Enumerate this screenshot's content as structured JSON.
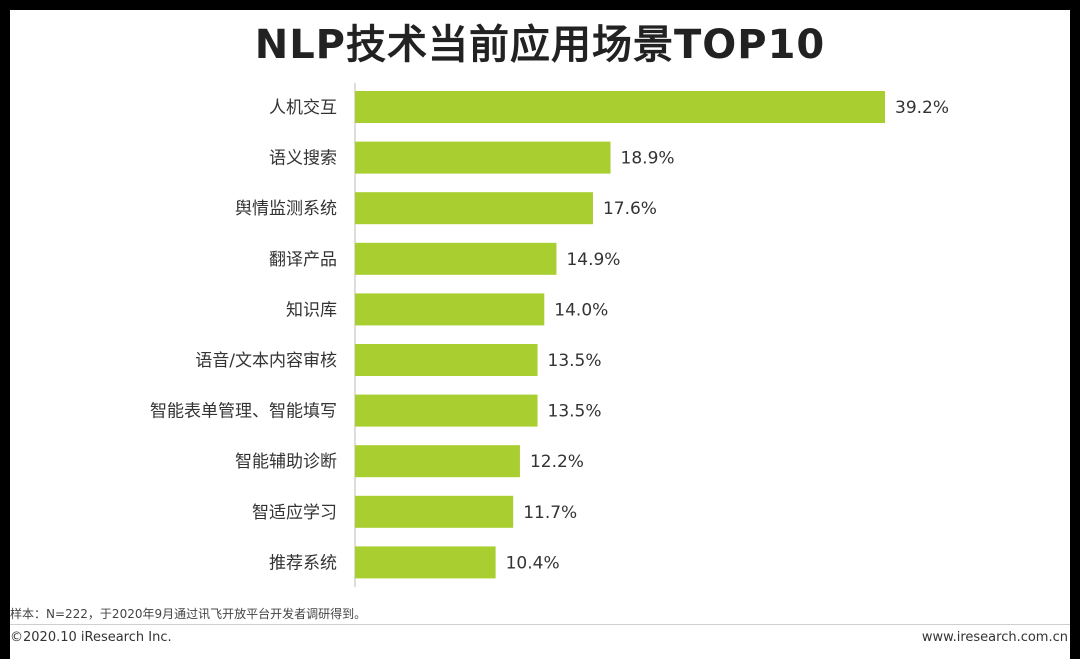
{
  "chart_data": {
    "type": "bar",
    "orientation": "horizontal",
    "title": "NLP技术当前应用场景TOP10",
    "categories": [
      "人机交互",
      "语义搜索",
      "舆情监测系统",
      "翻译产品",
      "知识库",
      "语音/文本内容审核",
      "智能表单管理、智能填写",
      "智能辅助诊断",
      "智适应学习",
      "推荐系统"
    ],
    "values": [
      39.2,
      18.9,
      17.6,
      14.9,
      14.0,
      13.5,
      13.5,
      12.2,
      11.7,
      10.4
    ],
    "value_labels": [
      "39.2%",
      "18.9%",
      "17.6%",
      "14.9%",
      "14.0%",
      "13.5%",
      "13.5%",
      "12.2%",
      "11.7%",
      "10.4%"
    ],
    "xlabel": "",
    "ylabel": "",
    "xlim": [
      0,
      40
    ],
    "bar_color": "#a8cf2f",
    "grid": false
  },
  "footer": {
    "note": "样本：N=222，于2020年9月通过讯飞开放平台开发者调研得到。",
    "copyright": "©2020.10 iResearch Inc.",
    "site": "www.iresearch.com.cn"
  }
}
